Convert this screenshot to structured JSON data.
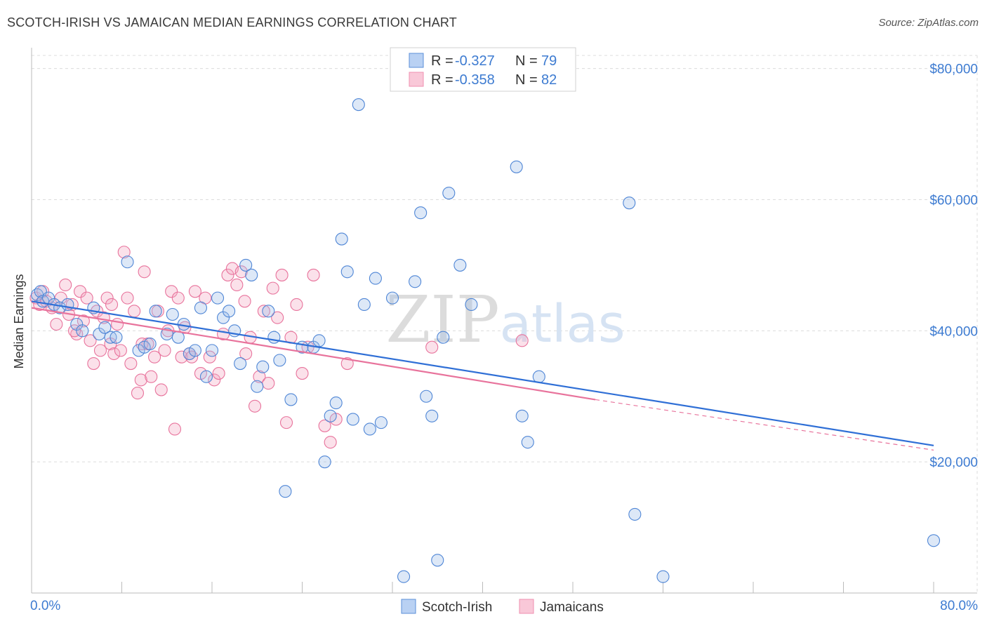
{
  "title": "SCOTCH-IRISH VS JAMAICAN MEDIAN EARNINGS CORRELATION CHART",
  "source": "Source: ZipAtlas.com",
  "watermark": "ZIPatlas",
  "chart_data": {
    "type": "scatter",
    "ylabel": "Median Earnings",
    "xlim": [
      0,
      80
    ],
    "ylim": [
      0,
      82000
    ],
    "x_tick_labels": [
      "0.0%",
      "80.0%"
    ],
    "y_ticks": [
      20000,
      40000,
      60000,
      80000
    ],
    "y_tick_labels": [
      "$20,000",
      "$40,000",
      "$60,000",
      "$80,000"
    ],
    "grid": true,
    "legend_placement": "top-center",
    "colors": {
      "scotch_irish": "#5b8fd9",
      "jamaicans": "#ef8fb0",
      "blue_line": "#2f6fd6",
      "pink_line": "#e8739c"
    },
    "legend": {
      "r_label": "R =",
      "n_label": "N =",
      "rows": [
        {
          "r": "-0.327",
          "n": "79"
        },
        {
          "r": "-0.358",
          "n": "82"
        }
      ]
    },
    "series": [
      {
        "name": "Scotch-Irish",
        "color": "#5b8fd9",
        "trend": {
          "x": [
            0,
            80
          ],
          "y": [
            44500,
            22500
          ]
        },
        "points": [
          [
            0.5,
            45500
          ],
          [
            0.8,
            46000
          ],
          [
            1.0,
            44500
          ],
          [
            1.5,
            45000
          ],
          [
            2.0,
            44000
          ],
          [
            2.5,
            43500
          ],
          [
            3.2,
            44000
          ],
          [
            4.0,
            41000
          ],
          [
            4.5,
            40000
          ],
          [
            5.5,
            43500
          ],
          [
            6.0,
            39500
          ],
          [
            6.5,
            40500
          ],
          [
            7.0,
            39000
          ],
          [
            7.5,
            39000
          ],
          [
            8.5,
            50500
          ],
          [
            9.5,
            37000
          ],
          [
            10.0,
            37500
          ],
          [
            10.5,
            38000
          ],
          [
            11.0,
            43000
          ],
          [
            12.0,
            39500
          ],
          [
            12.5,
            42500
          ],
          [
            13.0,
            39000
          ],
          [
            13.5,
            41000
          ],
          [
            14.0,
            36500
          ],
          [
            14.5,
            37000
          ],
          [
            15.0,
            43500
          ],
          [
            15.5,
            33000
          ],
          [
            16.0,
            37000
          ],
          [
            16.5,
            45000
          ],
          [
            17.0,
            42000
          ],
          [
            17.5,
            43000
          ],
          [
            18.0,
            40000
          ],
          [
            18.5,
            35000
          ],
          [
            19.0,
            50000
          ],
          [
            19.5,
            48500
          ],
          [
            20.0,
            31500
          ],
          [
            20.5,
            34500
          ],
          [
            21.0,
            43000
          ],
          [
            21.5,
            39000
          ],
          [
            22.0,
            35500
          ],
          [
            22.5,
            15500
          ],
          [
            23.0,
            29500
          ],
          [
            24.0,
            37500
          ],
          [
            25.0,
            37500
          ],
          [
            25.5,
            38500
          ],
          [
            26.0,
            20000
          ],
          [
            26.5,
            27000
          ],
          [
            27.0,
            29000
          ],
          [
            27.5,
            54000
          ],
          [
            28.0,
            49000
          ],
          [
            28.5,
            26500
          ],
          [
            29.0,
            74500
          ],
          [
            29.5,
            44000
          ],
          [
            30.0,
            25000
          ],
          [
            30.5,
            48000
          ],
          [
            31.0,
            26000
          ],
          [
            32.0,
            45000
          ],
          [
            33.0,
            2500
          ],
          [
            34.0,
            47500
          ],
          [
            34.5,
            58000
          ],
          [
            35.0,
            30000
          ],
          [
            35.5,
            27000
          ],
          [
            36.0,
            5000
          ],
          [
            36.5,
            39000
          ],
          [
            37.0,
            61000
          ],
          [
            38.0,
            50000
          ],
          [
            39.0,
            44000
          ],
          [
            43.0,
            65000
          ],
          [
            43.5,
            27000
          ],
          [
            44.0,
            23000
          ],
          [
            45.0,
            33000
          ],
          [
            53.0,
            59500
          ],
          [
            53.5,
            12000
          ],
          [
            56.0,
            2500
          ],
          [
            80.0,
            8000
          ]
        ]
      },
      {
        "name": "Jamaicans",
        "color": "#ef8fb0",
        "trend": {
          "x": [
            0,
            50
          ],
          "y": [
            43500,
            29500
          ]
        },
        "trend_dashed": {
          "x": [
            50,
            80
          ],
          "y": [
            29500,
            21800
          ]
        },
        "points": [
          [
            0.4,
            45000
          ],
          [
            0.7,
            44000
          ],
          [
            1.0,
            46000
          ],
          [
            1.3,
            44500
          ],
          [
            1.8,
            43500
          ],
          [
            2.2,
            41000
          ],
          [
            2.6,
            45000
          ],
          [
            3.0,
            47000
          ],
          [
            3.3,
            42500
          ],
          [
            3.6,
            44000
          ],
          [
            4.0,
            39500
          ],
          [
            4.3,
            46000
          ],
          [
            4.6,
            41500
          ],
          [
            4.9,
            45000
          ],
          [
            5.2,
            38500
          ],
          [
            5.5,
            35000
          ],
          [
            5.8,
            43000
          ],
          [
            6.1,
            37000
          ],
          [
            6.4,
            42000
          ],
          [
            6.7,
            45000
          ],
          [
            7.0,
            38000
          ],
          [
            7.3,
            36500
          ],
          [
            7.6,
            41000
          ],
          [
            7.9,
            37000
          ],
          [
            8.2,
            52000
          ],
          [
            8.5,
            45000
          ],
          [
            8.8,
            35000
          ],
          [
            9.1,
            43000
          ],
          [
            9.4,
            30500
          ],
          [
            9.7,
            32500
          ],
          [
            10.0,
            49000
          ],
          [
            10.3,
            38000
          ],
          [
            10.6,
            33000
          ],
          [
            10.9,
            36000
          ],
          [
            11.2,
            43000
          ],
          [
            11.5,
            31000
          ],
          [
            11.8,
            37000
          ],
          [
            12.1,
            40000
          ],
          [
            12.4,
            46000
          ],
          [
            12.7,
            25000
          ],
          [
            13.0,
            45000
          ],
          [
            13.3,
            36000
          ],
          [
            13.6,
            40500
          ],
          [
            14.0,
            36500
          ],
          [
            14.5,
            46000
          ],
          [
            15.0,
            33500
          ],
          [
            15.4,
            45000
          ],
          [
            15.8,
            36000
          ],
          [
            16.2,
            32500
          ],
          [
            16.6,
            33500
          ],
          [
            17.0,
            39500
          ],
          [
            17.4,
            48500
          ],
          [
            17.8,
            49500
          ],
          [
            18.2,
            47000
          ],
          [
            18.6,
            49000
          ],
          [
            19.0,
            36500
          ],
          [
            19.4,
            39000
          ],
          [
            19.8,
            28500
          ],
          [
            20.2,
            33000
          ],
          [
            20.6,
            43000
          ],
          [
            21.0,
            32000
          ],
          [
            21.4,
            46500
          ],
          [
            21.8,
            42000
          ],
          [
            22.2,
            48500
          ],
          [
            22.6,
            26000
          ],
          [
            23.0,
            39000
          ],
          [
            23.5,
            44000
          ],
          [
            24.0,
            33500
          ],
          [
            24.5,
            37500
          ],
          [
            25.0,
            48500
          ],
          [
            26.0,
            25500
          ],
          [
            26.5,
            23000
          ],
          [
            27.0,
            26500
          ],
          [
            28.0,
            35000
          ],
          [
            35.5,
            37500
          ],
          [
            43.5,
            38500
          ],
          [
            3.8,
            40000
          ],
          [
            7.1,
            44000
          ],
          [
            9.8,
            38000
          ],
          [
            14.2,
            36000
          ],
          [
            18.9,
            44500
          ]
        ]
      }
    ]
  },
  "bottom_legend": [
    {
      "label": "Scotch-Irish"
    },
    {
      "label": "Jamaicans"
    }
  ]
}
